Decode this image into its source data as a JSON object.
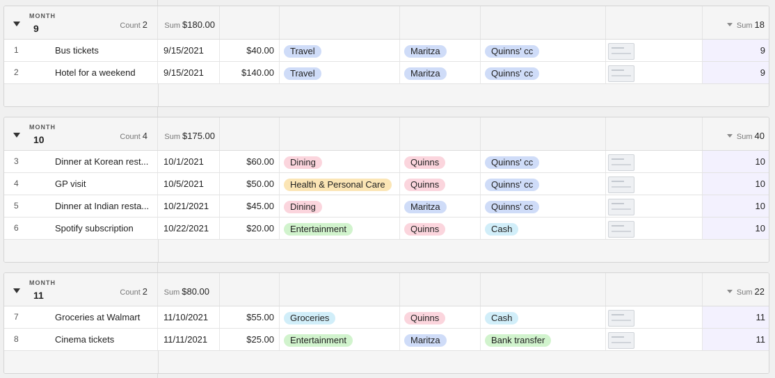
{
  "groups": [
    {
      "month_label": "MONTH",
      "month": "9",
      "count_label": "Count",
      "count": "2",
      "sum_label": "Sum",
      "sum_amount": "$180.00",
      "sum2_label": "Sum",
      "sum2": "18",
      "rows": [
        {
          "num": "1",
          "name": "Bus tickets",
          "date": "9/15/2021",
          "amount": "$40.00",
          "category": "Travel",
          "category_color": "#cfdcf8",
          "who": "Maritza",
          "who_color": "#cfdcf8",
          "payment": "Quinns' cc",
          "payment_color": "#cfdcf8",
          "month": "9"
        },
        {
          "num": "2",
          "name": "Hotel for a weekend",
          "date": "9/15/2021",
          "amount": "$140.00",
          "category": "Travel",
          "category_color": "#cfdcf8",
          "who": "Maritza",
          "who_color": "#cfdcf8",
          "payment": "Quinns' cc",
          "payment_color": "#cfdcf8",
          "month": "9"
        }
      ]
    },
    {
      "month_label": "MONTH",
      "month": "10",
      "count_label": "Count",
      "count": "4",
      "sum_label": "Sum",
      "sum_amount": "$175.00",
      "sum2_label": "Sum",
      "sum2": "40",
      "rows": [
        {
          "num": "3",
          "name": "Dinner at Korean rest...",
          "date": "10/1/2021",
          "amount": "$60.00",
          "category": "Dining",
          "category_color": "#fbd5dd",
          "who": "Quinns",
          "who_color": "#fbd5dd",
          "payment": "Quinns' cc",
          "payment_color": "#cfdcf8",
          "month": "10"
        },
        {
          "num": "4",
          "name": "GP visit",
          "date": "10/5/2021",
          "amount": "$50.00",
          "category": "Health & Personal Care",
          "category_color": "#fbe5b5",
          "who": "Quinns",
          "who_color": "#fbd5dd",
          "payment": "Quinns' cc",
          "payment_color": "#cfdcf8",
          "month": "10"
        },
        {
          "num": "5",
          "name": "Dinner at Indian resta...",
          "date": "10/21/2021",
          "amount": "$45.00",
          "category": "Dining",
          "category_color": "#fbd5dd",
          "who": "Maritza",
          "who_color": "#cfdcf8",
          "payment": "Quinns' cc",
          "payment_color": "#cfdcf8",
          "month": "10"
        },
        {
          "num": "6",
          "name": "Spotify subscription",
          "date": "10/22/2021",
          "amount": "$20.00",
          "category": "Entertainment",
          "category_color": "#d1f3cd",
          "who": "Quinns",
          "who_color": "#fbd5dd",
          "payment": "Cash",
          "payment_color": "#d1eef9",
          "month": "10"
        }
      ]
    },
    {
      "month_label": "MONTH",
      "month": "11",
      "count_label": "Count",
      "count": "2",
      "sum_label": "Sum",
      "sum_amount": "$80.00",
      "sum2_label": "Sum",
      "sum2": "22",
      "rows": [
        {
          "num": "7",
          "name": "Groceries at Walmart",
          "date": "11/10/2021",
          "amount": "$55.00",
          "category": "Groceries",
          "category_color": "#d1eef9",
          "who": "Quinns",
          "who_color": "#fbd5dd",
          "payment": "Cash",
          "payment_color": "#d1eef9",
          "month": "11"
        },
        {
          "num": "8",
          "name": "Cinema tickets",
          "date": "11/11/2021",
          "amount": "$25.00",
          "category": "Entertainment",
          "category_color": "#d1f3cd",
          "who": "Maritza",
          "who_color": "#cfdcf8",
          "payment": "Bank transfer",
          "payment_color": "#d1f3cd",
          "month": "11"
        }
      ]
    }
  ],
  "icons": {
    "toggle": "triangle-down-icon",
    "sort": "caret-down-icon",
    "receipt": "receipt-thumbnail-icon"
  }
}
